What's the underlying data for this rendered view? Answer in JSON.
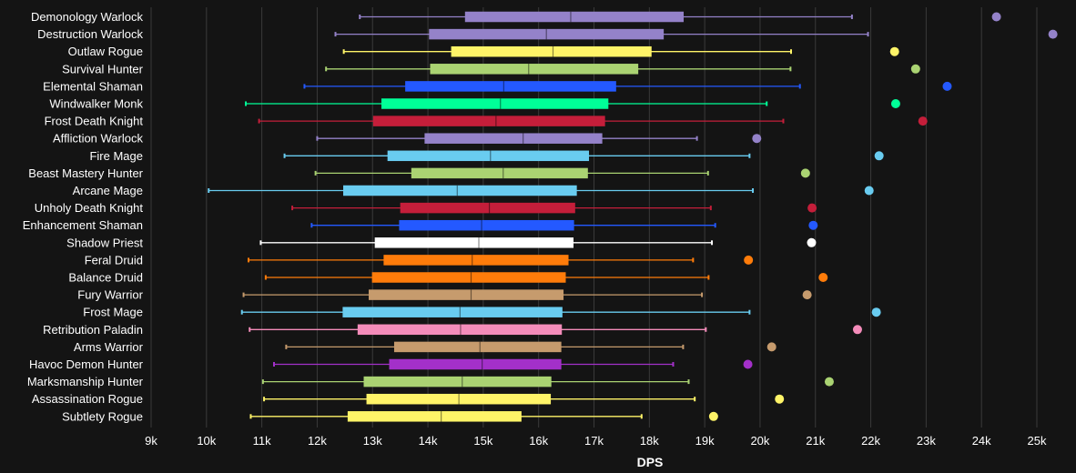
{
  "chart_data": {
    "type": "boxplot",
    "xlabel": "DPS",
    "xlim": [
      9000,
      25500
    ],
    "x_ticks": [
      9000,
      10000,
      11000,
      12000,
      13000,
      14000,
      15000,
      16000,
      17000,
      18000,
      19000,
      20000,
      21000,
      22000,
      23000,
      24000,
      25000
    ],
    "x_tick_labels": [
      "9k",
      "10k",
      "11k",
      "12k",
      "13k",
      "14k",
      "15k",
      "16k",
      "17k",
      "18k",
      "19k",
      "20k",
      "21k",
      "22k",
      "23k",
      "24k",
      "25k"
    ],
    "grid": true,
    "series": [
      {
        "name": "Demonology Warlock",
        "color": "#9482c9",
        "min": 12770,
        "q1": 14670,
        "median": 16580,
        "q3": 18620,
        "max": 21660,
        "outlier": 24270
      },
      {
        "name": "Destruction Warlock",
        "color": "#9482c9",
        "min": 12330,
        "q1": 14020,
        "median": 16140,
        "q3": 18260,
        "max": 21950,
        "outlier": 25290
      },
      {
        "name": "Outlaw Rogue",
        "color": "#fff468",
        "min": 12480,
        "q1": 14420,
        "median": 16260,
        "q3": 18040,
        "max": 20560,
        "outlier": 22430
      },
      {
        "name": "Survival Hunter",
        "color": "#aad372",
        "min": 12160,
        "q1": 14040,
        "median": 15820,
        "q3": 17800,
        "max": 20550,
        "outlier": 22810
      },
      {
        "name": "Elemental Shaman",
        "color": "#2459ff",
        "min": 11770,
        "q1": 13590,
        "median": 15370,
        "q3": 17400,
        "max": 20720,
        "outlier": 23380
      },
      {
        "name": "Windwalker Monk",
        "color": "#00ff98",
        "min": 10710,
        "q1": 13160,
        "median": 15310,
        "q3": 17260,
        "max": 20120,
        "outlier": 22450
      },
      {
        "name": "Frost Death Knight",
        "color": "#c41e3a",
        "min": 10950,
        "q1": 13010,
        "median": 15230,
        "q3": 17200,
        "max": 20420,
        "outlier": 22940
      },
      {
        "name": "Affliction Warlock",
        "color": "#9482c9",
        "min": 12000,
        "q1": 13940,
        "median": 15720,
        "q3": 17150,
        "max": 18860,
        "outlier": 19940
      },
      {
        "name": "Fire Mage",
        "color": "#69ccf0",
        "min": 11410,
        "q1": 13270,
        "median": 15130,
        "q3": 16910,
        "max": 19810,
        "outlier": 22150
      },
      {
        "name": "Beast Mastery Hunter",
        "color": "#aad372",
        "min": 11970,
        "q1": 13700,
        "median": 15360,
        "q3": 16890,
        "max": 19060,
        "outlier": 20820
      },
      {
        "name": "Arcane Mage",
        "color": "#69ccf0",
        "min": 10040,
        "q1": 12470,
        "median": 14530,
        "q3": 16690,
        "max": 19870,
        "outlier": 21970
      },
      {
        "name": "Unholy Death Knight",
        "color": "#c41e3a",
        "min": 11550,
        "q1": 13500,
        "median": 15110,
        "q3": 16660,
        "max": 19110,
        "outlier": 20940
      },
      {
        "name": "Enhancement Shaman",
        "color": "#2459ff",
        "min": 11900,
        "q1": 13480,
        "median": 14970,
        "q3": 16640,
        "max": 19190,
        "outlier": 20960
      },
      {
        "name": "Shadow Priest",
        "color": "#ffffff",
        "min": 10980,
        "q1": 13040,
        "median": 14920,
        "q3": 16630,
        "max": 19130,
        "outlier": 20930
      },
      {
        "name": "Feral Druid",
        "color": "#ff7c0a",
        "min": 10760,
        "q1": 13200,
        "median": 14800,
        "q3": 16540,
        "max": 18790,
        "outlier": 19790
      },
      {
        "name": "Balance Druid",
        "color": "#ff7c0a",
        "min": 11070,
        "q1": 12990,
        "median": 14780,
        "q3": 16490,
        "max": 19070,
        "outlier": 21140
      },
      {
        "name": "Fury Warrior",
        "color": "#c69b6d",
        "min": 10670,
        "q1": 12930,
        "median": 14780,
        "q3": 16450,
        "max": 18950,
        "outlier": 20850
      },
      {
        "name": "Frost Mage",
        "color": "#69ccf0",
        "min": 10640,
        "q1": 12460,
        "median": 14580,
        "q3": 16430,
        "max": 19810,
        "outlier": 22100
      },
      {
        "name": "Retribution Paladin",
        "color": "#f48cba",
        "min": 10780,
        "q1": 12730,
        "median": 14590,
        "q3": 16420,
        "max": 19020,
        "outlier": 21760
      },
      {
        "name": "Arms Warrior",
        "color": "#c69b6d",
        "min": 11440,
        "q1": 13390,
        "median": 14940,
        "q3": 16410,
        "max": 18610,
        "outlier": 20210
      },
      {
        "name": "Havoc Demon Hunter",
        "color": "#a330c9",
        "min": 11220,
        "q1": 13300,
        "median": 14980,
        "q3": 16410,
        "max": 18430,
        "outlier": 19780
      },
      {
        "name": "Marksmanship Hunter",
        "color": "#aad372",
        "min": 11020,
        "q1": 12840,
        "median": 14620,
        "q3": 16230,
        "max": 18710,
        "outlier": 21250
      },
      {
        "name": "Assassination Rogue",
        "color": "#fff468",
        "min": 11040,
        "q1": 12890,
        "median": 14560,
        "q3": 16220,
        "max": 18820,
        "outlier": 20350
      },
      {
        "name": "Subtlety Rogue",
        "color": "#fff468",
        "min": 10800,
        "q1": 12550,
        "median": 14240,
        "q3": 15690,
        "max": 17860,
        "outlier": 19160
      }
    ]
  }
}
